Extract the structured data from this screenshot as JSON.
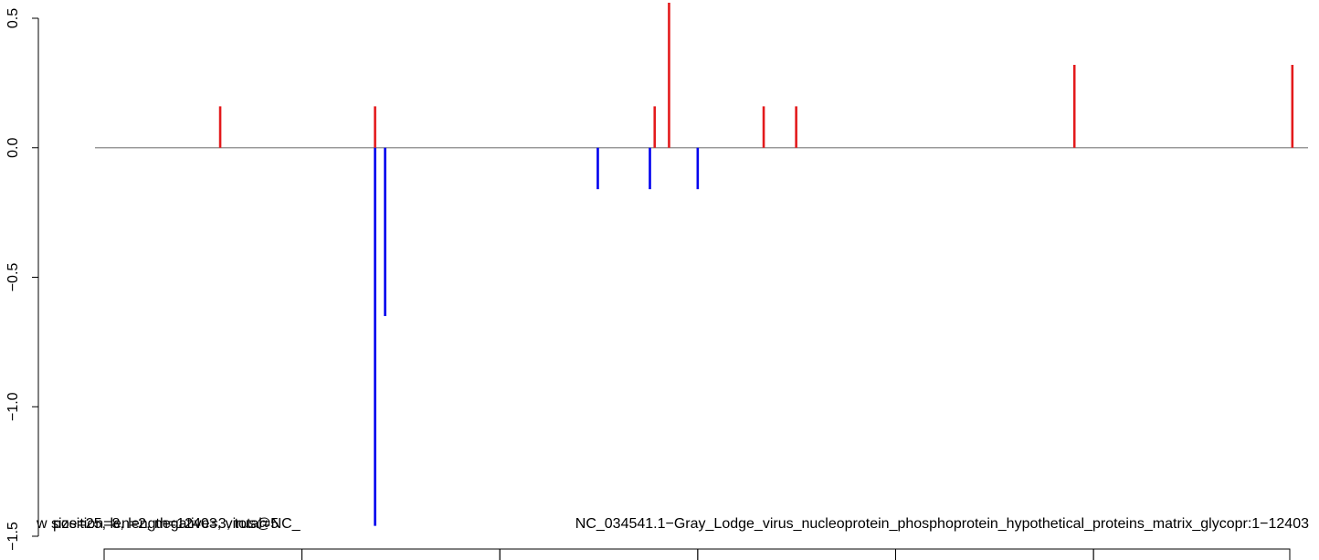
{
  "chart_data": {
    "type": "bar",
    "title": "NC_034541.1−Gray_Lodge_virus_nucleoprotein_phosphoprotein_hypothetical_proteins_matrix_glycopr:1−12403",
    "title_overlay_fragments": [
      "w size=25, len=2, negative=3, total=5",
      "position=8, length=12403, virus@NC_"
    ],
    "xlabel": "",
    "ylabel": "",
    "x_range": [
      1,
      12403
    ],
    "ylim": [
      -1.5,
      0.5
    ],
    "y_ticks": [
      {
        "value": -1.5,
        "label": "−1.5"
      },
      {
        "value": -1.0,
        "label": "−1.0"
      },
      {
        "value": -0.5,
        "label": "−0.5"
      },
      {
        "value": 0.0,
        "label": "0.0"
      },
      {
        "value": 0.5,
        "label": "0.5"
      }
    ],
    "baseline": 0,
    "grid": false,
    "legend": "none",
    "colors": {
      "positive": "#e31a1c",
      "negative": "#0000ee",
      "baseline": "#888888"
    },
    "series": [
      {
        "strand": "positive",
        "color": "#e31a1c",
        "points": [
          {
            "x": 1215,
            "y": 0.16
          },
          {
            "x": 2835,
            "y": 0.16
          },
          {
            "x": 5760,
            "y": 0.16
          },
          {
            "x": 5910,
            "y": 0.56
          },
          {
            "x": 6900,
            "y": 0.16
          },
          {
            "x": 7240,
            "y": 0.16
          },
          {
            "x": 10150,
            "y": 0.32
          },
          {
            "x": 12430,
            "y": 0.32
          }
        ]
      },
      {
        "strand": "negative",
        "color": "#0000ee",
        "points": [
          {
            "x": 2835,
            "y": -1.46
          },
          {
            "x": 2940,
            "y": -0.65
          },
          {
            "x": 5165,
            "y": -0.16
          },
          {
            "x": 5710,
            "y": -0.16
          },
          {
            "x": 6210,
            "y": -0.16
          }
        ]
      }
    ],
    "genome_segments": [
      {
        "start": 1,
        "end": 2070
      },
      {
        "start": 2070,
        "end": 4140
      },
      {
        "start": 4140,
        "end": 6210
      },
      {
        "start": 6210,
        "end": 8280
      },
      {
        "start": 8280,
        "end": 10350
      },
      {
        "start": 10350,
        "end": 12403
      }
    ]
  }
}
